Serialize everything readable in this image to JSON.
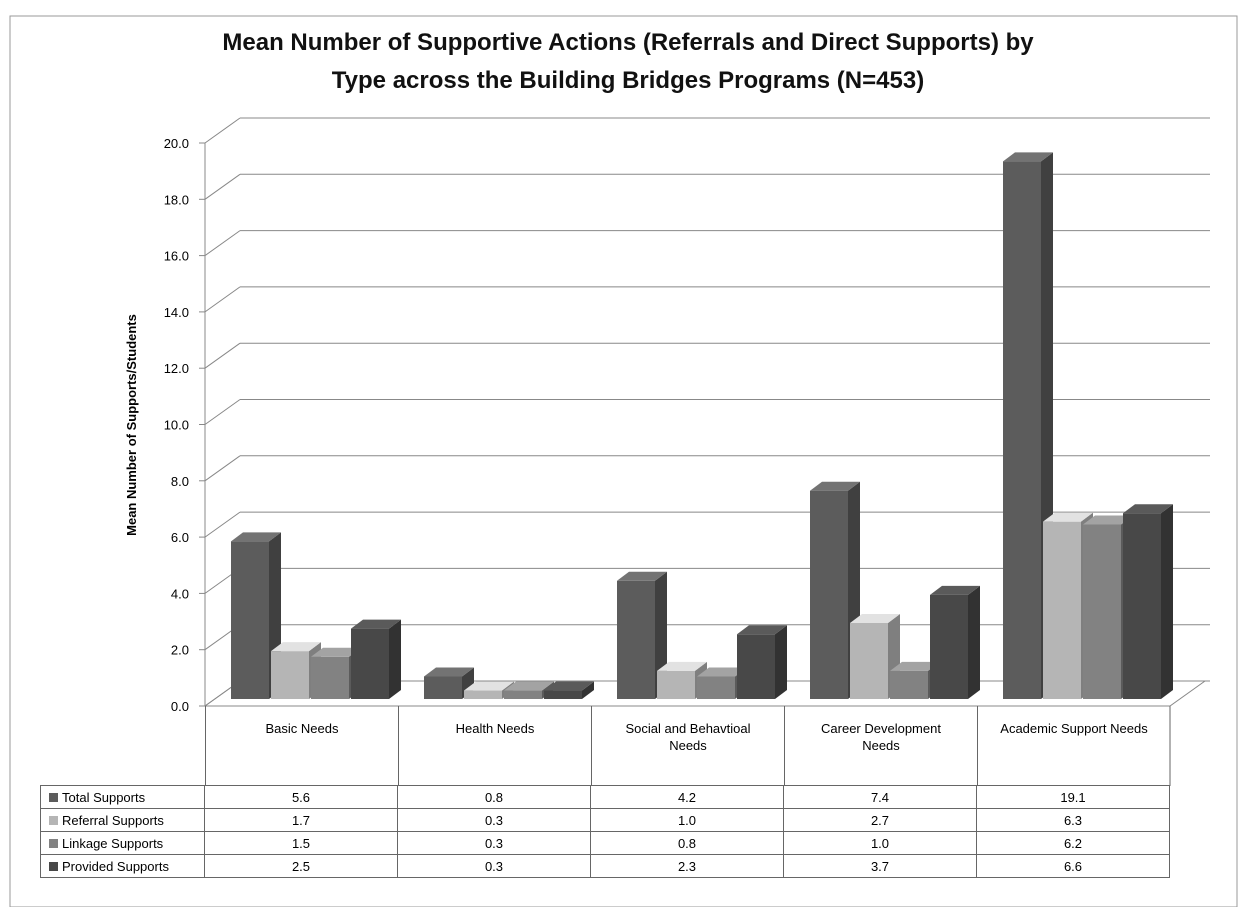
{
  "chart_data": {
    "type": "bar3d",
    "title": [
      "Mean Number of Supportive Actions (Referrals and Direct Supports) by",
      "Type across the Building Bridges Programs (N=453)"
    ],
    "y_label": "Mean Number of Supports/Students",
    "categories": [
      "Basic Needs",
      "Health Needs",
      "Social and Behavtioal Needs",
      "Career Development Needs",
      "Academic Support Needs"
    ],
    "series": [
      {
        "name": "Total Supports",
        "color": "#5c5c5c",
        "values": [
          5.6,
          0.8,
          4.2,
          7.4,
          19.1
        ],
        "value_labels": [
          "5.6",
          "0.8",
          "4.2",
          "7.4",
          "19.1"
        ]
      },
      {
        "name": "Referral Supports",
        "color": "#b5b5b5",
        "values": [
          1.7,
          0.3,
          1.0,
          2.7,
          6.3
        ],
        "value_labels": [
          "1.7",
          "0.3",
          "1.0",
          "2.7",
          "6.3"
        ]
      },
      {
        "name": "Linkage Supports",
        "color": "#828282",
        "values": [
          1.5,
          0.3,
          0.8,
          1.0,
          6.2
        ],
        "value_labels": [
          "1.5",
          "0.3",
          "0.8",
          "1.0",
          "6.2"
        ]
      },
      {
        "name": "Provided Supports",
        "color": "#484848",
        "values": [
          2.5,
          0.3,
          2.3,
          3.7,
          6.6
        ],
        "value_labels": [
          "2.5",
          "0.3",
          "2.3",
          "3.7",
          "6.6"
        ]
      }
    ],
    "ylim": [
      0,
      20
    ],
    "yticks": [
      {
        "value": 0,
        "label": "0.0"
      },
      {
        "value": 2,
        "label": "2.0"
      },
      {
        "value": 4,
        "label": "4.0"
      },
      {
        "value": 6,
        "label": "6.0"
      },
      {
        "value": 8,
        "label": "8.0"
      },
      {
        "value": 10,
        "label": "10.0"
      },
      {
        "value": 12,
        "label": "12.0"
      },
      {
        "value": 14,
        "label": "14.0"
      },
      {
        "value": 16,
        "label": "16.0"
      },
      {
        "value": 18,
        "label": "18.0"
      },
      {
        "value": 20,
        "label": "20.0"
      }
    ],
    "grid": true
  }
}
